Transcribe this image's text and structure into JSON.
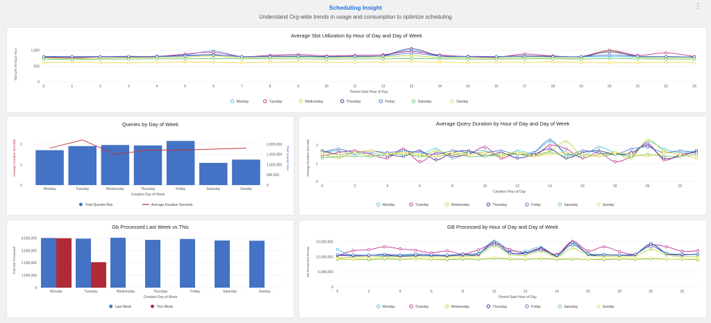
{
  "header": {
    "title": "Scheduling Insight",
    "subtitle": "Understand Org-wide trends in usage and consumption to optimize scheduling",
    "menu_icon": "kebab-menu-icon"
  },
  "colors": {
    "Monday": "#4cc3e8",
    "Tuesday": "#c2308f",
    "Wednesday": "#b8d63a",
    "Thursday": "#3f2f8f",
    "Friday": "#4b76c8",
    "Saturday": "#6cc66b",
    "Sunday": "#f2d84b",
    "bar_blue": "#4472c4",
    "bar_red": "#b02a37",
    "line_red": "#c0343a"
  },
  "days": [
    "Monday",
    "Tuesday",
    "Wednesday",
    "Thursday",
    "Friday",
    "Saturday",
    "Sunday"
  ],
  "chart_data": [
    {
      "id": "slot",
      "type": "line",
      "title": "Average Slot Utilization by Hour of Day and Day of Week",
      "xlabel": "Period Start Hour of Day",
      "ylabel": "Slots per 30 Days Hour",
      "x": [
        0,
        1,
        2,
        3,
        4,
        5,
        6,
        7,
        8,
        9,
        10,
        11,
        12,
        13,
        14,
        15,
        16,
        17,
        18,
        19,
        20,
        21,
        22,
        23
      ],
      "xticks": [
        "0",
        "1",
        "2",
        "3",
        "4",
        "5",
        "6",
        "7",
        "8",
        "9",
        "10",
        "11",
        "12",
        "13",
        "14",
        "15",
        "16",
        "17",
        "18",
        "19",
        "20",
        "21",
        "22",
        "23"
      ],
      "ylim": [
        0,
        1100
      ],
      "yticks": [
        0,
        500,
        1000
      ],
      "ytick_labels": [
        "0",
        "500",
        "1,000"
      ],
      "series": [
        {
          "name": "Monday",
          "values": [
            800,
            800,
            790,
            800,
            810,
            850,
            980,
            800,
            810,
            800,
            790,
            800,
            830,
            1000,
            810,
            800,
            790,
            810,
            800,
            790,
            800,
            790,
            800,
            780
          ]
        },
        {
          "name": "Tuesday",
          "values": [
            780,
            760,
            790,
            790,
            800,
            880,
            940,
            800,
            840,
            870,
            820,
            840,
            860,
            960,
            850,
            800,
            780,
            880,
            820,
            800,
            1000,
            840,
            920,
            800
          ]
        },
        {
          "name": "Wednesday",
          "values": [
            760,
            740,
            750,
            760,
            770,
            780,
            820,
            760,
            770,
            780,
            770,
            780,
            790,
            830,
            770,
            760,
            750,
            770,
            770,
            760,
            980,
            780,
            760,
            760
          ]
        },
        {
          "name": "Thursday",
          "values": [
            790,
            790,
            800,
            790,
            810,
            830,
            860,
            800,
            810,
            820,
            800,
            810,
            830,
            1050,
            820,
            810,
            800,
            820,
            810,
            800,
            950,
            810,
            800,
            790
          ]
        },
        {
          "name": "Friday",
          "values": [
            800,
            800,
            800,
            810,
            800,
            820,
            850,
            800,
            800,
            810,
            800,
            810,
            820,
            900,
            820,
            800,
            800,
            810,
            800,
            800,
            850,
            810,
            800,
            790
          ]
        },
        {
          "name": "Saturday",
          "values": [
            720,
            710,
            720,
            720,
            730,
            730,
            740,
            730,
            730,
            730,
            720,
            730,
            730,
            740,
            730,
            720,
            720,
            730,
            730,
            720,
            740,
            730,
            720,
            720
          ]
        },
        {
          "name": "Sunday",
          "values": [
            600,
            620,
            610,
            600,
            620,
            630,
            620,
            610,
            620,
            630,
            620,
            620,
            630,
            640,
            620,
            610,
            620,
            620,
            630,
            620,
            600,
            610,
            620,
            610
          ]
        }
      ]
    },
    {
      "id": "queries",
      "type": "bar",
      "title": "Queries by Day of Week",
      "xlabel": "Creation Day of Week",
      "ylabel_left": "Average Duration Seconds",
      "ylabel_right": "Total Queries Ran",
      "categories": [
        "Monday",
        "Tuesday",
        "Wednesday",
        "Thursday",
        "Friday",
        "Saturday",
        "Sunday"
      ],
      "bar_series": {
        "name": "Total Queries Ran",
        "values": [
          1700000,
          1900000,
          1950000,
          1930000,
          2150000,
          1080000,
          1240000
        ]
      },
      "line_series": {
        "name": "Average Duration Seconds",
        "values": [
          1.8,
          2.2,
          1.5,
          1.7,
          1.7,
          1.75,
          1.8
        ]
      },
      "ylim_left": [
        0,
        2.6
      ],
      "yticks_left": [
        0,
        1,
        2
      ],
      "ytick_labels_left": [
        "0",
        "1",
        "2"
      ],
      "ylim_right": [
        0,
        2600000
      ],
      "yticks_right": [
        0,
        500000,
        1000000,
        1500000,
        2000000
      ],
      "ytick_labels_right": [
        "0",
        "500,000",
        "1,000,000",
        "1,500,000",
        "2,000,000"
      ]
    },
    {
      "id": "duration",
      "type": "line",
      "title": "Average Query Duration by Hour of Day and Day of Week",
      "xlabel": "Creation Hour of Day",
      "ylabel": "Average Duration Seconds",
      "x": [
        0,
        1,
        2,
        3,
        4,
        5,
        6,
        7,
        8,
        9,
        10,
        11,
        12,
        13,
        14,
        15,
        16,
        17,
        18,
        19,
        20,
        21,
        22,
        23
      ],
      "xticks": [
        "0",
        "2",
        "4",
        "6",
        "8",
        "10",
        "12",
        "14",
        "16",
        "18",
        "20",
        "22"
      ],
      "xtick_values": [
        0,
        2,
        4,
        6,
        8,
        10,
        12,
        14,
        16,
        18,
        20,
        22
      ],
      "ylim": [
        0,
        2.6
      ],
      "yticks": [
        0,
        1,
        2
      ],
      "ytick_labels": [
        "0",
        "1",
        "2"
      ],
      "series": [
        {
          "name": "Monday",
          "values": [
            1.6,
            1.7,
            1.5,
            1.6,
            1.4,
            1.7,
            1.5,
            1.8,
            1.3,
            1.6,
            1.7,
            1.4,
            1.7,
            1.6,
            2.2,
            1.6,
            1.4,
            1.9,
            1.6,
            1.5,
            2.2,
            1.8,
            1.6,
            1.7
          ]
        },
        {
          "name": "Tuesday",
          "values": [
            1.4,
            1.6,
            1.7,
            1.5,
            1.3,
            1.8,
            1.1,
            1.6,
            1.4,
            1.5,
            1.9,
            1.3,
            1.6,
            1.4,
            2.0,
            1.8,
            1.3,
            1.6,
            1.1,
            1.4,
            2.1,
            1.2,
            1.5,
            1.6
          ]
        },
        {
          "name": "Wednesday",
          "values": [
            1.5,
            1.3,
            1.6,
            1.4,
            1.5,
            1.6,
            1.4,
            1.7,
            1.5,
            1.6,
            1.5,
            1.4,
            1.6,
            1.5,
            1.7,
            2.2,
            1.4,
            1.5,
            1.6,
            1.3,
            2.3,
            1.7,
            1.5,
            1.3
          ]
        },
        {
          "name": "Thursday",
          "values": [
            1.7,
            1.5,
            1.6,
            1.7,
            1.5,
            1.4,
            1.7,
            1.2,
            1.6,
            1.7,
            1.4,
            1.6,
            1.3,
            1.5,
            1.8,
            1.3,
            1.6,
            1.7,
            1.5,
            1.6,
            2.0,
            1.3,
            1.4,
            1.7
          ]
        },
        {
          "name": "Friday",
          "values": [
            1.6,
            1.8,
            1.6,
            1.7,
            1.6,
            1.7,
            1.6,
            1.5,
            1.7,
            1.6,
            1.6,
            1.7,
            1.5,
            1.6,
            2.3,
            1.5,
            1.7,
            1.6,
            1.5,
            1.8,
            1.9,
            1.6,
            1.7,
            1.6
          ]
        },
        {
          "name": "Saturday",
          "values": [
            1.3,
            1.4,
            1.4,
            1.4,
            1.5,
            1.5,
            1.4,
            1.4,
            1.5,
            1.4,
            1.4,
            1.5,
            1.5,
            1.4,
            1.6,
            1.4,
            1.5,
            1.4,
            1.5,
            1.4,
            1.5,
            1.4,
            1.4,
            1.5
          ]
        },
        {
          "name": "Sunday",
          "values": [
            1.6,
            1.5,
            1.6,
            1.7,
            1.5,
            1.6,
            1.5,
            1.4,
            1.6,
            1.5,
            1.6,
            1.5,
            1.6,
            1.4,
            1.5,
            1.6,
            1.5,
            1.4,
            1.6,
            1.5,
            1.4,
            1.6,
            1.5,
            1.3
          ]
        }
      ]
    },
    {
      "id": "gbweek",
      "type": "bar",
      "title": "Gb Processed Last Week vs This",
      "xlabel": "Creation Day of Week",
      "ylabel": "Total GB Processed",
      "categories": [
        "Monday",
        "Tuesday",
        "Wednesday",
        "Thursday",
        "Friday",
        "Saturday",
        "Sunday"
      ],
      "series": [
        {
          "name": "Last Week",
          "values": [
            4000000,
            3950000,
            4020000,
            3850000,
            3920000,
            3800000,
            3780000
          ]
        },
        {
          "name": "This Week",
          "values": [
            3980000,
            2050000,
            0,
            0,
            0,
            0,
            0
          ]
        }
      ],
      "ylim": [
        0,
        4300000
      ],
      "yticks": [
        0,
        1000000,
        2000000,
        3000000,
        4000000
      ],
      "ytick_labels": [
        "0",
        "1,000,000",
        "2,000,000",
        "3,000,000",
        "4,000,000"
      ]
    },
    {
      "id": "gbhour",
      "type": "line",
      "title": "GB Processed by Hour of Day and Day of Week",
      "xlabel": "Period Start Hour of Day",
      "ylabel": "GB Processed 30 Day",
      "x": [
        0,
        1,
        2,
        3,
        4,
        5,
        6,
        7,
        8,
        9,
        10,
        11,
        12,
        13,
        14,
        15,
        16,
        17,
        18,
        19,
        20,
        21,
        22,
        23
      ],
      "xticks": [
        "0",
        "2",
        "4",
        "6",
        "8",
        "10",
        "12",
        "14",
        "16",
        "18",
        "20",
        "22"
      ],
      "xtick_values": [
        0,
        2,
        4,
        6,
        8,
        10,
        12,
        14,
        16,
        18,
        20,
        22
      ],
      "ylim": [
        0,
        16500000
      ],
      "yticks": [
        0,
        5000000,
        10000000,
        15000000
      ],
      "ytick_labels": [
        "0",
        "5,000,000",
        "10,000,000",
        "15,000,000"
      ],
      "series": [
        {
          "name": "Monday",
          "values": [
            12400000,
            10300000,
            10600000,
            10200000,
            10400000,
            10600000,
            10300000,
            10500000,
            10900000,
            11300000,
            15200000,
            12100000,
            11800000,
            13200000,
            10200000,
            14200000,
            11100000,
            10800000,
            10600000,
            10900000,
            14300000,
            11200000,
            10800000,
            10600000
          ]
        },
        {
          "name": "Tuesday",
          "values": [
            10400000,
            12000000,
            12300000,
            13300000,
            12600000,
            12100000,
            11300000,
            11900000,
            10900000,
            12300000,
            14300000,
            12400000,
            11300000,
            12800000,
            10800000,
            15100000,
            11900000,
            13300000,
            11700000,
            10900000,
            13800000,
            13300000,
            11800000,
            12000000
          ]
        },
        {
          "name": "Wednesday",
          "values": [
            9600000,
            9800000,
            10000000,
            9900000,
            10100000,
            10100000,
            9900000,
            10000000,
            10200000,
            10400000,
            13600000,
            10800000,
            10500000,
            11800000,
            10000000,
            12800000,
            10500000,
            10200000,
            10100000,
            10200000,
            12400000,
            10600000,
            10100000,
            9900000
          ]
        },
        {
          "name": "Thursday",
          "values": [
            10500000,
            10300000,
            10400000,
            10600000,
            10200000,
            10400000,
            10500000,
            10300000,
            10600000,
            10800000,
            14800000,
            11400000,
            11200000,
            12600000,
            10400000,
            14700000,
            10800000,
            10600000,
            10500000,
            10700000,
            14100000,
            11000000,
            10600000,
            10800000
          ]
        },
        {
          "name": "Friday",
          "values": [
            10700000,
            10600000,
            10500000,
            10800000,
            10600000,
            10900000,
            10700000,
            10500000,
            10800000,
            11000000,
            14000000,
            11200000,
            11000000,
            12200000,
            10600000,
            13900000,
            10900000,
            10700000,
            10600000,
            10900000,
            13400000,
            11100000,
            10800000,
            10700000
          ]
        },
        {
          "name": "Saturday",
          "values": [
            9200000,
            9100000,
            9000000,
            9200000,
            9100000,
            9300000,
            9100000,
            9000000,
            9200000,
            9100000,
            9400000,
            9200000,
            9100000,
            9300000,
            9100000,
            9200000,
            9100000,
            9000000,
            9200000,
            9100000,
            9300000,
            9200000,
            9100000,
            9000000
          ]
        },
        {
          "name": "Sunday",
          "values": [
            9400000,
            9200000,
            9300000,
            9500000,
            9300000,
            9400000,
            9200000,
            9300000,
            9500000,
            9300000,
            9600000,
            9400000,
            9300000,
            9500000,
            9300000,
            9400000,
            9200000,
            9300000,
            9400000,
            9300000,
            9500000,
            9300000,
            9200000,
            9300000
          ]
        }
      ]
    }
  ]
}
